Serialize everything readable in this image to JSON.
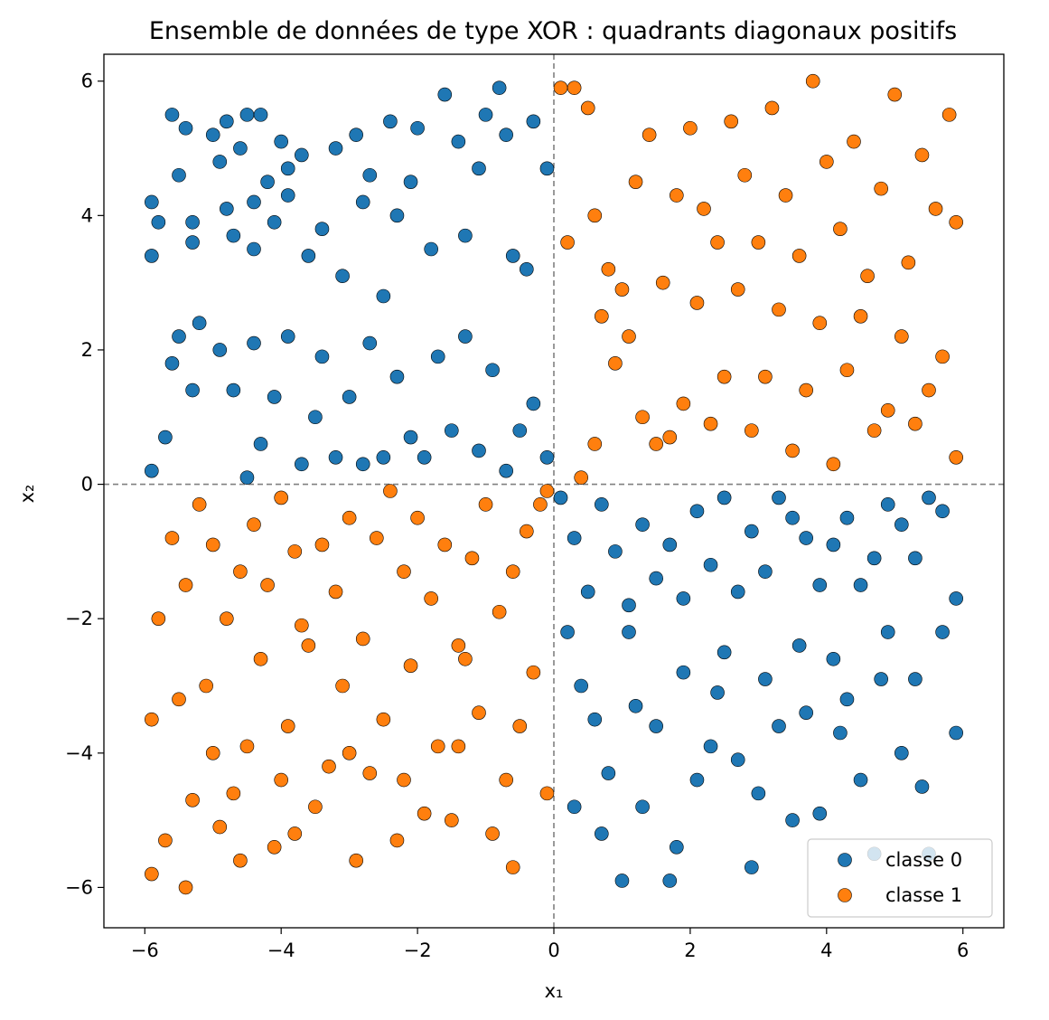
{
  "colors": {
    "class0": "#1f77b4",
    "class1": "#ff7f0e",
    "marker_edge": "#000000",
    "reference_lines": "#808080"
  },
  "chart_data": {
    "type": "scatter",
    "title": "Ensemble de données de type XOR : quadrants diagonaux positifs",
    "xlabel": "x₁",
    "ylabel": "x₂",
    "xlim": [
      -6.6,
      6.6
    ],
    "ylim": [
      -6.6,
      6.4
    ],
    "xticks": [
      -6,
      -4,
      -2,
      0,
      2,
      4,
      6
    ],
    "yticks": [
      -6,
      -4,
      -2,
      0,
      2,
      4,
      6
    ],
    "xtick_labels": [
      "−6",
      "−4",
      "−2",
      "0",
      "2",
      "4",
      "6"
    ],
    "ytick_labels": [
      "−6",
      "−4",
      "−2",
      "0",
      "2",
      "4",
      "6"
    ],
    "reference_lines": {
      "x": 0,
      "y": 0,
      "style": "dashed"
    },
    "legend_position": "bottom-right",
    "series": [
      {
        "name": "classe 0",
        "color": "#1f77b4",
        "points": [
          [
            -5.9,
            4.2
          ],
          [
            -5.8,
            3.9
          ],
          [
            -5.9,
            3.4
          ],
          [
            -5.6,
            5.5
          ],
          [
            -5.4,
            5.3
          ],
          [
            -5.5,
            4.6
          ],
          [
            -5.3,
            3.9
          ],
          [
            -5.3,
            3.6
          ],
          [
            -5.0,
            5.2
          ],
          [
            -4.9,
            4.8
          ],
          [
            -4.8,
            5.4
          ],
          [
            -4.8,
            4.1
          ],
          [
            -4.7,
            3.7
          ],
          [
            -4.6,
            5.0
          ],
          [
            -4.5,
            5.5
          ],
          [
            -4.4,
            4.2
          ],
          [
            -4.4,
            3.5
          ],
          [
            -4.3,
            5.5
          ],
          [
            -4.2,
            4.5
          ],
          [
            -4.1,
            3.9
          ],
          [
            -4.0,
            5.1
          ],
          [
            -3.9,
            4.7
          ],
          [
            -3.9,
            4.3
          ],
          [
            -3.7,
            4.9
          ],
          [
            -3.6,
            3.4
          ],
          [
            -3.4,
            3.8
          ],
          [
            -3.2,
            5.0
          ],
          [
            -3.1,
            3.1
          ],
          [
            -2.9,
            5.2
          ],
          [
            -2.8,
            4.2
          ],
          [
            -2.7,
            4.6
          ],
          [
            -2.5,
            2.8
          ],
          [
            -2.4,
            5.4
          ],
          [
            -2.3,
            4.0
          ],
          [
            -2.1,
            4.5
          ],
          [
            -2.0,
            5.3
          ],
          [
            -1.8,
            3.5
          ],
          [
            -1.6,
            5.8
          ],
          [
            -1.4,
            5.1
          ],
          [
            -1.3,
            3.7
          ],
          [
            -1.1,
            4.7
          ],
          [
            -1.0,
            5.5
          ],
          [
            -0.8,
            5.9
          ],
          [
            -0.7,
            5.2
          ],
          [
            -0.6,
            3.4
          ],
          [
            -0.4,
            3.2
          ],
          [
            -0.3,
            5.4
          ],
          [
            -0.1,
            4.7
          ],
          [
            -5.9,
            0.2
          ],
          [
            -5.7,
            0.7
          ],
          [
            -5.6,
            1.8
          ],
          [
            -5.5,
            2.2
          ],
          [
            -5.3,
            1.4
          ],
          [
            -5.2,
            2.4
          ],
          [
            -4.9,
            2.0
          ],
          [
            -4.7,
            1.4
          ],
          [
            -4.5,
            0.1
          ],
          [
            -4.4,
            2.1
          ],
          [
            -4.3,
            0.6
          ],
          [
            -4.1,
            1.3
          ],
          [
            -3.9,
            2.2
          ],
          [
            -3.7,
            0.3
          ],
          [
            -3.5,
            1.0
          ],
          [
            -3.4,
            1.9
          ],
          [
            -3.2,
            0.4
          ],
          [
            -3.0,
            1.3
          ],
          [
            -2.8,
            0.3
          ],
          [
            -2.7,
            2.1
          ],
          [
            -2.5,
            0.4
          ],
          [
            -2.3,
            1.6
          ],
          [
            -2.1,
            0.7
          ],
          [
            -1.9,
            0.4
          ],
          [
            -1.7,
            1.9
          ],
          [
            -1.5,
            0.8
          ],
          [
            -1.3,
            2.2
          ],
          [
            -1.1,
            0.5
          ],
          [
            -0.9,
            1.7
          ],
          [
            -0.7,
            0.2
          ],
          [
            -0.5,
            0.8
          ],
          [
            -0.3,
            1.2
          ],
          [
            -0.1,
            0.4
          ],
          [
            0.1,
            -0.2
          ],
          [
            0.3,
            -0.8
          ],
          [
            0.5,
            -1.6
          ],
          [
            0.7,
            -0.3
          ],
          [
            0.9,
            -1.0
          ],
          [
            1.1,
            -1.8
          ],
          [
            1.3,
            -0.6
          ],
          [
            1.5,
            -1.4
          ],
          [
            1.7,
            -0.9
          ],
          [
            1.9,
            -1.7
          ],
          [
            2.1,
            -0.4
          ],
          [
            2.3,
            -1.2
          ],
          [
            2.5,
            -0.2
          ],
          [
            2.7,
            -1.6
          ],
          [
            2.9,
            -0.7
          ],
          [
            3.1,
            -1.3
          ],
          [
            3.3,
            -0.2
          ],
          [
            3.5,
            -0.5
          ],
          [
            3.7,
            -0.8
          ],
          [
            3.9,
            -1.5
          ],
          [
            4.1,
            -0.9
          ],
          [
            4.3,
            -0.5
          ],
          [
            4.5,
            -1.5
          ],
          [
            4.7,
            -1.1
          ],
          [
            4.9,
            -0.3
          ],
          [
            5.1,
            -0.6
          ],
          [
            5.3,
            -1.1
          ],
          [
            5.5,
            -0.2
          ],
          [
            5.7,
            -0.4
          ],
          [
            5.9,
            -1.7
          ],
          [
            0.2,
            -2.2
          ],
          [
            0.4,
            -3.0
          ],
          [
            0.6,
            -3.5
          ],
          [
            0.8,
            -4.3
          ],
          [
            1.0,
            -5.9
          ],
          [
            1.1,
            -2.2
          ],
          [
            1.3,
            -4.8
          ],
          [
            1.5,
            -3.6
          ],
          [
            1.7,
            -5.9
          ],
          [
            1.9,
            -2.8
          ],
          [
            2.1,
            -4.4
          ],
          [
            2.3,
            -3.9
          ],
          [
            2.5,
            -2.5
          ],
          [
            2.7,
            -4.1
          ],
          [
            2.9,
            -5.7
          ],
          [
            3.1,
            -2.9
          ],
          [
            3.3,
            -3.6
          ],
          [
            3.5,
            -5.0
          ],
          [
            3.7,
            -3.4
          ],
          [
            3.9,
            -4.9
          ],
          [
            4.1,
            -2.6
          ],
          [
            4.3,
            -3.2
          ],
          [
            4.5,
            -4.4
          ],
          [
            4.7,
            -5.5
          ],
          [
            4.9,
            -2.2
          ],
          [
            5.1,
            -4.0
          ],
          [
            5.3,
            -2.9
          ],
          [
            5.5,
            -5.5
          ],
          [
            5.7,
            -2.2
          ],
          [
            5.9,
            -3.7
          ],
          [
            0.3,
            -4.8
          ],
          [
            0.7,
            -5.2
          ],
          [
            1.2,
            -3.3
          ],
          [
            1.8,
            -5.4
          ],
          [
            2.4,
            -3.1
          ],
          [
            3.0,
            -4.6
          ],
          [
            3.6,
            -2.4
          ],
          [
            4.2,
            -3.7
          ],
          [
            4.8,
            -2.9
          ],
          [
            5.4,
            -4.5
          ]
        ]
      },
      {
        "name": "classe 1",
        "color": "#ff7f0e",
        "points": [
          [
            0.1,
            5.9
          ],
          [
            0.3,
            5.9
          ],
          [
            0.5,
            5.6
          ],
          [
            0.6,
            4.0
          ],
          [
            0.8,
            3.2
          ],
          [
            1.0,
            2.9
          ],
          [
            1.2,
            4.5
          ],
          [
            1.4,
            5.2
          ],
          [
            1.6,
            3.0
          ],
          [
            1.8,
            4.3
          ],
          [
            2.0,
            5.3
          ],
          [
            2.2,
            4.1
          ],
          [
            2.4,
            3.6
          ],
          [
            2.6,
            5.4
          ],
          [
            2.8,
            4.6
          ],
          [
            3.0,
            3.6
          ],
          [
            3.2,
            5.6
          ],
          [
            3.4,
            4.3
          ],
          [
            3.6,
            3.4
          ],
          [
            3.8,
            6.0
          ],
          [
            4.0,
            4.8
          ],
          [
            4.2,
            3.8
          ],
          [
            4.4,
            5.1
          ],
          [
            4.6,
            3.1
          ],
          [
            4.8,
            4.4
          ],
          [
            5.0,
            5.8
          ],
          [
            5.2,
            3.3
          ],
          [
            5.4,
            4.9
          ],
          [
            5.6,
            4.1
          ],
          [
            5.8,
            5.5
          ],
          [
            5.9,
            3.9
          ],
          [
            0.2,
            3.6
          ],
          [
            0.7,
            2.5
          ],
          [
            0.9,
            1.8
          ],
          [
            1.1,
            2.2
          ],
          [
            1.3,
            1.0
          ],
          [
            1.5,
            0.6
          ],
          [
            1.7,
            0.7
          ],
          [
            1.9,
            1.2
          ],
          [
            2.1,
            2.7
          ],
          [
            2.3,
            0.9
          ],
          [
            2.5,
            1.6
          ],
          [
            2.7,
            2.9
          ],
          [
            2.9,
            0.8
          ],
          [
            3.1,
            1.6
          ],
          [
            3.3,
            2.6
          ],
          [
            3.5,
            0.5
          ],
          [
            3.7,
            1.4
          ],
          [
            3.9,
            2.4
          ],
          [
            4.1,
            0.3
          ],
          [
            4.3,
            1.7
          ],
          [
            4.5,
            2.5
          ],
          [
            4.7,
            0.8
          ],
          [
            4.9,
            1.1
          ],
          [
            5.1,
            2.2
          ],
          [
            5.3,
            0.9
          ],
          [
            5.5,
            1.4
          ],
          [
            5.7,
            1.9
          ],
          [
            5.9,
            0.4
          ],
          [
            0.4,
            0.1
          ],
          [
            0.6,
            0.6
          ],
          [
            -0.1,
            -0.1
          ],
          [
            -0.2,
            -0.3
          ],
          [
            -0.4,
            -0.7
          ],
          [
            -0.6,
            -1.3
          ],
          [
            -0.8,
            -1.9
          ],
          [
            -1.0,
            -0.3
          ],
          [
            -1.2,
            -1.1
          ],
          [
            -1.4,
            -2.4
          ],
          [
            -1.6,
            -0.9
          ],
          [
            -1.8,
            -1.7
          ],
          [
            -2.0,
            -0.5
          ],
          [
            -2.2,
            -1.3
          ],
          [
            -2.4,
            -0.1
          ],
          [
            -2.6,
            -0.8
          ],
          [
            -2.8,
            -2.3
          ],
          [
            -3.0,
            -0.5
          ],
          [
            -3.2,
            -1.6
          ],
          [
            -3.4,
            -0.9
          ],
          [
            -3.6,
            -2.4
          ],
          [
            -3.8,
            -1.0
          ],
          [
            -4.0,
            -0.2
          ],
          [
            -4.2,
            -1.5
          ],
          [
            -4.4,
            -0.6
          ],
          [
            -4.6,
            -1.3
          ],
          [
            -4.8,
            -2.0
          ],
          [
            -5.0,
            -0.9
          ],
          [
            -5.2,
            -0.3
          ],
          [
            -5.4,
            -1.5
          ],
          [
            -5.6,
            -0.8
          ],
          [
            -5.8,
            -2.0
          ],
          [
            -0.3,
            -2.8
          ],
          [
            -0.5,
            -3.6
          ],
          [
            -0.7,
            -4.4
          ],
          [
            -0.9,
            -5.2
          ],
          [
            -1.1,
            -3.4
          ],
          [
            -1.3,
            -2.6
          ],
          [
            -1.5,
            -5.0
          ],
          [
            -1.7,
            -3.9
          ],
          [
            -1.9,
            -4.9
          ],
          [
            -2.1,
            -2.7
          ],
          [
            -2.3,
            -5.3
          ],
          [
            -2.5,
            -3.5
          ],
          [
            -2.7,
            -4.3
          ],
          [
            -2.9,
            -5.6
          ],
          [
            -3.1,
            -3.0
          ],
          [
            -3.3,
            -4.2
          ],
          [
            -3.5,
            -4.8
          ],
          [
            -3.7,
            -2.1
          ],
          [
            -3.9,
            -3.6
          ],
          [
            -4.1,
            -5.4
          ],
          [
            -4.3,
            -2.6
          ],
          [
            -4.5,
            -3.9
          ],
          [
            -4.7,
            -4.6
          ],
          [
            -4.9,
            -5.1
          ],
          [
            -5.1,
            -3.0
          ],
          [
            -5.3,
            -4.7
          ],
          [
            -5.5,
            -3.2
          ],
          [
            -5.7,
            -5.3
          ],
          [
            -5.9,
            -3.5
          ],
          [
            -5.9,
            -5.8
          ],
          [
            -5.4,
            -6.0
          ],
          [
            -4.6,
            -5.6
          ],
          [
            -3.8,
            -5.2
          ],
          [
            -3.0,
            -4.0
          ],
          [
            -2.2,
            -4.4
          ],
          [
            -1.4,
            -3.9
          ],
          [
            -0.6,
            -5.7
          ],
          [
            -0.1,
            -4.6
          ],
          [
            -4.0,
            -4.4
          ],
          [
            -5.0,
            -4.0
          ]
        ]
      }
    ]
  }
}
